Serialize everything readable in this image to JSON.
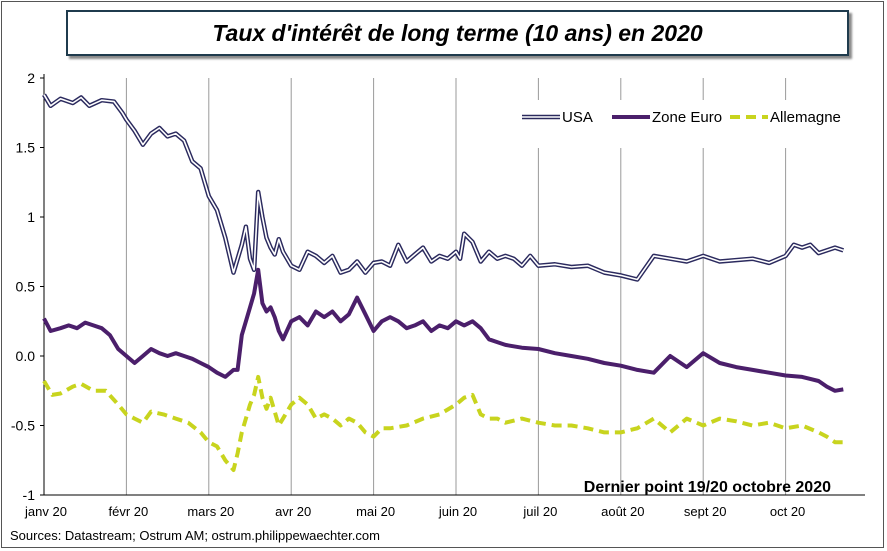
{
  "chart_data": {
    "type": "line",
    "title": "Taux d'intérêt de long terme (10 ans) en 2020",
    "ylim": [
      -1,
      2
    ],
    "y_ticks": [
      "2",
      "1.5",
      "1",
      "0.5",
      "0.0",
      "-0.5",
      "-1"
    ],
    "x_ticks": [
      "janv 20",
      "févr 20",
      "mars 20",
      "avr 20",
      "mai 20",
      "juin 20",
      "juil 20",
      "août 20",
      "sept 20",
      "oct 20"
    ],
    "xlim": [
      0,
      9.9
    ],
    "grid": "vertical",
    "legend_position": "top-right",
    "annotation": "Dernier point 19/20 octobre 2020",
    "series": [
      {
        "name": "USA",
        "color": "#2b2a5e",
        "style": "double",
        "x": [
          0,
          0.08,
          0.2,
          0.35,
          0.45,
          0.55,
          0.7,
          0.85,
          0.95,
          1.0,
          1.1,
          1.2,
          1.3,
          1.4,
          1.5,
          1.6,
          1.7,
          1.8,
          1.9,
          2.0,
          2.1,
          2.2,
          2.3,
          2.4,
          2.45,
          2.5,
          2.55,
          2.6,
          2.65,
          2.7,
          2.75,
          2.8,
          2.85,
          2.9,
          2.95,
          3.0,
          3.1,
          3.2,
          3.3,
          3.4,
          3.5,
          3.6,
          3.7,
          3.8,
          3.9,
          4.0,
          4.1,
          4.2,
          4.3,
          4.4,
          4.5,
          4.6,
          4.7,
          4.8,
          4.9,
          5.0,
          5.05,
          5.1,
          5.2,
          5.3,
          5.4,
          5.5,
          5.6,
          5.7,
          5.8,
          5.9,
          6.0,
          6.2,
          6.4,
          6.6,
          6.8,
          7.0,
          7.2,
          7.4,
          7.6,
          7.8,
          8.0,
          8.2,
          8.4,
          8.6,
          8.8,
          9.0,
          9.1,
          9.2,
          9.3,
          9.4,
          9.5,
          9.6,
          9.7
        ],
        "values": [
          1.88,
          1.8,
          1.85,
          1.82,
          1.86,
          1.8,
          1.84,
          1.83,
          1.75,
          1.7,
          1.62,
          1.52,
          1.6,
          1.64,
          1.58,
          1.6,
          1.55,
          1.4,
          1.35,
          1.15,
          1.05,
          0.85,
          0.6,
          0.8,
          0.93,
          0.7,
          0.62,
          1.18,
          1.0,
          0.85,
          0.78,
          0.73,
          0.84,
          0.75,
          0.7,
          0.65,
          0.62,
          0.75,
          0.72,
          0.67,
          0.72,
          0.6,
          0.62,
          0.68,
          0.6,
          0.67,
          0.68,
          0.65,
          0.8,
          0.68,
          0.73,
          0.78,
          0.68,
          0.72,
          0.7,
          0.75,
          0.7,
          0.88,
          0.82,
          0.68,
          0.75,
          0.7,
          0.72,
          0.7,
          0.65,
          0.72,
          0.65,
          0.66,
          0.64,
          0.65,
          0.6,
          0.58,
          0.55,
          0.72,
          0.7,
          0.68,
          0.72,
          0.68,
          0.69,
          0.7,
          0.67,
          0.72,
          0.8,
          0.78,
          0.8,
          0.74,
          0.76,
          0.78,
          0.76
        ]
      },
      {
        "name": "Zone Euro",
        "color": "#4b1f6b",
        "style": "solid",
        "x": [
          0,
          0.08,
          0.2,
          0.3,
          0.4,
          0.5,
          0.6,
          0.7,
          0.8,
          0.9,
          1.0,
          1.1,
          1.2,
          1.3,
          1.4,
          1.5,
          1.6,
          1.7,
          1.8,
          1.9,
          2.0,
          2.1,
          2.2,
          2.3,
          2.35,
          2.4,
          2.45,
          2.5,
          2.55,
          2.6,
          2.65,
          2.7,
          2.75,
          2.8,
          2.85,
          2.9,
          3.0,
          3.1,
          3.2,
          3.3,
          3.4,
          3.5,
          3.6,
          3.7,
          3.8,
          3.9,
          4.0,
          4.1,
          4.2,
          4.3,
          4.4,
          4.5,
          4.6,
          4.7,
          4.8,
          4.9,
          5.0,
          5.1,
          5.2,
          5.3,
          5.4,
          5.5,
          5.6,
          5.8,
          6.0,
          6.2,
          6.4,
          6.6,
          6.8,
          7.0,
          7.2,
          7.4,
          7.6,
          7.8,
          8.0,
          8.2,
          8.4,
          8.6,
          8.8,
          9.0,
          9.2,
          9.4,
          9.5,
          9.6,
          9.7
        ],
        "values": [
          0.27,
          0.18,
          0.2,
          0.22,
          0.2,
          0.24,
          0.22,
          0.2,
          0.15,
          0.05,
          0.0,
          -0.05,
          0.0,
          0.05,
          0.02,
          0.0,
          0.02,
          0.0,
          -0.02,
          -0.05,
          -0.08,
          -0.12,
          -0.15,
          -0.1,
          -0.1,
          0.15,
          0.25,
          0.35,
          0.45,
          0.62,
          0.38,
          0.32,
          0.35,
          0.28,
          0.18,
          0.12,
          0.25,
          0.28,
          0.22,
          0.32,
          0.28,
          0.32,
          0.25,
          0.3,
          0.42,
          0.3,
          0.18,
          0.25,
          0.28,
          0.25,
          0.2,
          0.22,
          0.25,
          0.18,
          0.22,
          0.2,
          0.25,
          0.22,
          0.25,
          0.2,
          0.12,
          0.1,
          0.08,
          0.06,
          0.05,
          0.02,
          0.0,
          -0.02,
          -0.05,
          -0.07,
          -0.1,
          -0.12,
          0.0,
          -0.08,
          0.02,
          -0.05,
          -0.08,
          -0.1,
          -0.12,
          -0.14,
          -0.15,
          -0.18,
          -0.22,
          -0.25,
          -0.24
        ]
      },
      {
        "name": "Allemagne",
        "color": "#c8d41e",
        "style": "dashed",
        "x": [
          0,
          0.1,
          0.2,
          0.35,
          0.45,
          0.6,
          0.75,
          0.9,
          1.0,
          1.1,
          1.2,
          1.3,
          1.45,
          1.6,
          1.75,
          1.9,
          2.0,
          2.1,
          2.2,
          2.3,
          2.35,
          2.4,
          2.45,
          2.5,
          2.55,
          2.6,
          2.65,
          2.7,
          2.75,
          2.8,
          2.85,
          2.9,
          3.0,
          3.1,
          3.2,
          3.3,
          3.4,
          3.5,
          3.6,
          3.7,
          3.8,
          3.9,
          4.0,
          4.1,
          4.2,
          4.4,
          4.6,
          4.8,
          5.0,
          5.1,
          5.2,
          5.3,
          5.4,
          5.5,
          5.6,
          5.8,
          6.0,
          6.2,
          6.4,
          6.6,
          6.8,
          7.0,
          7.2,
          7.4,
          7.6,
          7.8,
          8.0,
          8.2,
          8.4,
          8.6,
          8.8,
          9.0,
          9.2,
          9.4,
          9.5,
          9.6,
          9.7
        ],
        "values": [
          -0.18,
          -0.28,
          -0.27,
          -0.22,
          -0.2,
          -0.25,
          -0.25,
          -0.35,
          -0.42,
          -0.45,
          -0.48,
          -0.4,
          -0.42,
          -0.45,
          -0.48,
          -0.55,
          -0.62,
          -0.65,
          -0.75,
          -0.82,
          -0.7,
          -0.55,
          -0.45,
          -0.35,
          -0.28,
          -0.15,
          -0.3,
          -0.38,
          -0.3,
          -0.4,
          -0.5,
          -0.45,
          -0.35,
          -0.3,
          -0.35,
          -0.45,
          -0.42,
          -0.45,
          -0.5,
          -0.45,
          -0.48,
          -0.55,
          -0.58,
          -0.52,
          -0.52,
          -0.5,
          -0.45,
          -0.42,
          -0.35,
          -0.3,
          -0.28,
          -0.42,
          -0.45,
          -0.45,
          -0.48,
          -0.45,
          -0.48,
          -0.5,
          -0.5,
          -0.52,
          -0.55,
          -0.55,
          -0.52,
          -0.45,
          -0.55,
          -0.45,
          -0.5,
          -0.45,
          -0.47,
          -0.5,
          -0.48,
          -0.52,
          -0.5,
          -0.55,
          -0.58,
          -0.62,
          -0.62
        ]
      }
    ]
  },
  "source_text": "Sources: Datastream; Ostrum AM; ostrum.philippewaechter.com"
}
